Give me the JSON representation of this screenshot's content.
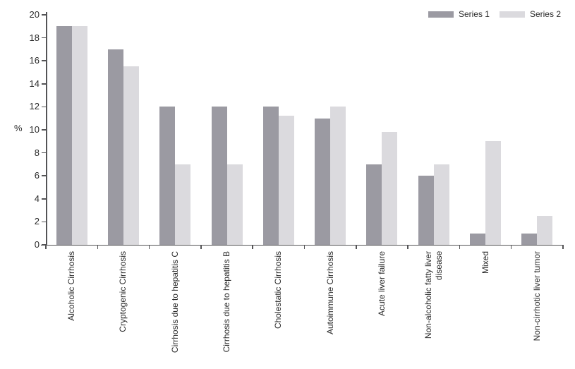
{
  "chart_data": {
    "type": "bar",
    "title": "",
    "ylabel": "%",
    "xlabel": "",
    "ylim": [
      0,
      20
    ],
    "yticks": [
      0,
      2,
      4,
      6,
      8,
      10,
      12,
      14,
      16,
      18,
      20
    ],
    "grid": false,
    "legend_position": "top-right",
    "categories": [
      "Alcoholic Cirrhosis",
      "Cryptogenic Cirrhosis",
      "Cirrhosis due to hepatitis C",
      "Cirrhosis due to hepatitis B",
      "Cholestatic Cirrhosis",
      "Autoimmune Cirrhosis",
      "Acute liver failure",
      "Non-alcoholic fatty liver\ndisease",
      "Mixed",
      "Non-cirrhotic liver tumor"
    ],
    "series": [
      {
        "name": "Series 1",
        "color": "#9b9aa2",
        "values": [
          19,
          17,
          12,
          12,
          12,
          11,
          7,
          6,
          1,
          1
        ]
      },
      {
        "name": "Series 2",
        "color": "#dbdade",
        "values": [
          19,
          15.5,
          7,
          7,
          11.2,
          12,
          9.8,
          7,
          9,
          2.5
        ]
      }
    ],
    "colors": {
      "axis": "#545456",
      "text": "#2a2a2a",
      "background": "#ffffff"
    }
  }
}
